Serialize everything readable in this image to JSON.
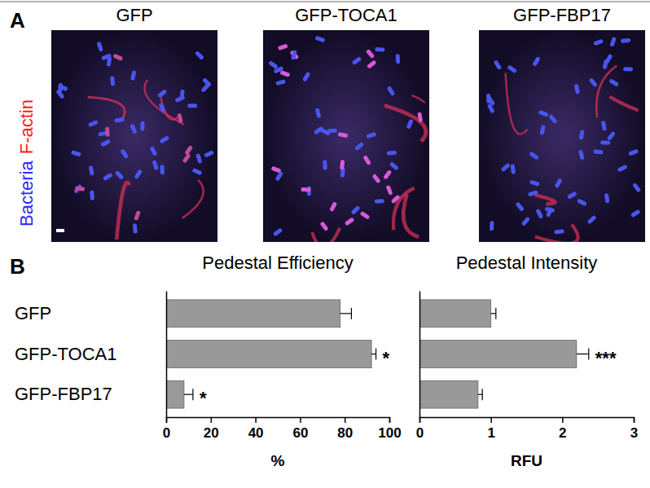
{
  "panel_a": {
    "label": "A",
    "images": [
      "GFP",
      "GFP-TOCA1",
      "GFP-FBP17"
    ],
    "stains": [
      {
        "text": "Bacteria",
        "color": "#2a2aff"
      },
      {
        "text": "F-actin",
        "color": "#ff1a1a"
      }
    ]
  },
  "panel_b": {
    "label": "B"
  },
  "chart_data": [
    {
      "type": "bar",
      "orientation": "horizontal",
      "title": "Pedestal Efficiency",
      "x_label": "%",
      "categories": [
        "GFP",
        "GFP-TOCA1",
        "GFP-FBP17"
      ],
      "values": [
        78,
        92,
        8
      ],
      "errors": [
        5,
        2,
        4
      ],
      "significance": [
        null,
        "*",
        "*"
      ],
      "color": "#999999",
      "xlim": [
        0,
        100
      ],
      "xticks": [
        0,
        20,
        40,
        60,
        80,
        100
      ],
      "grid": false
    },
    {
      "type": "bar",
      "orientation": "horizontal",
      "title": "Pedestal Intensity",
      "x_label": "RFU",
      "categories": [
        null,
        null,
        null
      ],
      "values": [
        1.0,
        2.2,
        0.82
      ],
      "errors": [
        0.07,
        0.17,
        0.06
      ],
      "significance": [
        null,
        "***",
        null
      ],
      "color": "#999999",
      "xlim": [
        0,
        3
      ],
      "xticks": [
        0,
        1,
        2,
        3
      ],
      "grid": false,
      "tick_labels": "x"
    }
  ]
}
